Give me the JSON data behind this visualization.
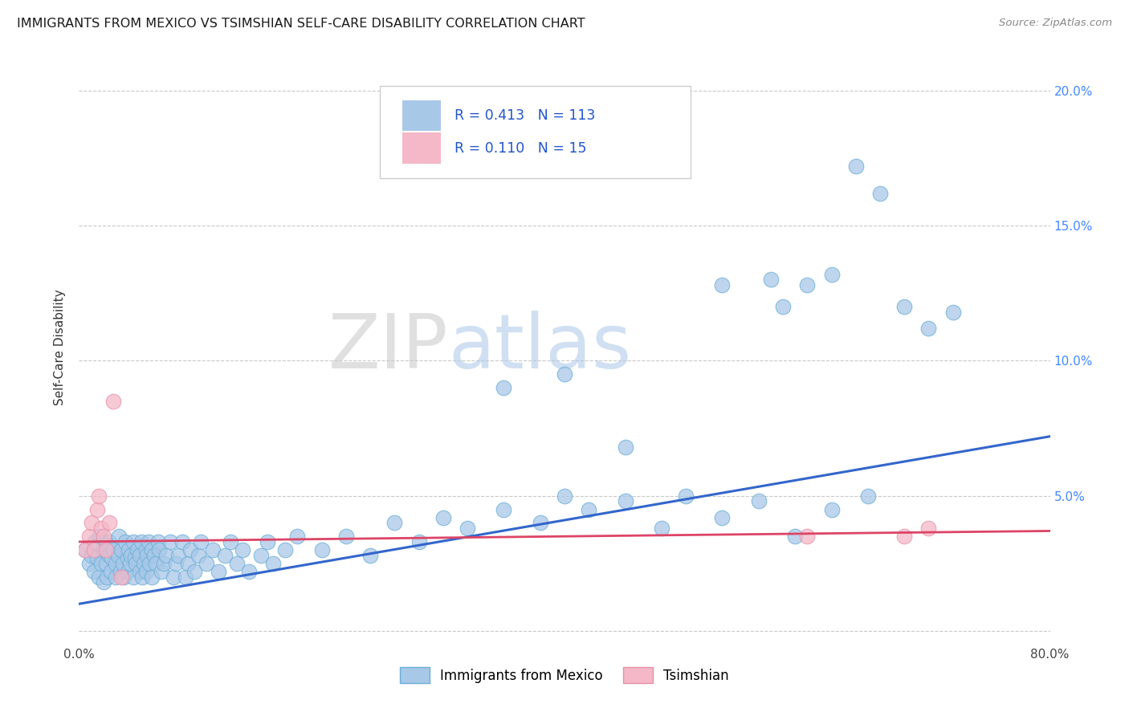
{
  "title": "IMMIGRANTS FROM MEXICO VS TSIMSHIAN SELF-CARE DISABILITY CORRELATION CHART",
  "source": "Source: ZipAtlas.com",
  "ylabel": "Self-Care Disability",
  "xlim": [
    0.0,
    0.8
  ],
  "ylim": [
    -0.005,
    0.215
  ],
  "legend_series1_label": "Immigrants from Mexico",
  "legend_series2_label": "Tsimshian",
  "R1": "0.413",
  "N1": "113",
  "R2": "0.110",
  "N2": "15",
  "color_blue": "#a8c8e8",
  "color_blue_edge": "#6aaed6",
  "color_pink": "#f4b8c8",
  "color_pink_edge": "#e890a8",
  "color_line_blue": "#3366cc",
  "color_line_pink": "#dd4466",
  "watermark_zip": "ZIP",
  "watermark_atlas": "atlas",
  "blue_x": [
    0.005,
    0.008,
    0.01,
    0.012,
    0.013,
    0.015,
    0.016,
    0.017,
    0.018,
    0.02,
    0.02,
    0.022,
    0.022,
    0.023,
    0.025,
    0.025,
    0.026,
    0.027,
    0.028,
    0.03,
    0.03,
    0.032,
    0.033,
    0.034,
    0.035,
    0.036,
    0.037,
    0.038,
    0.04,
    0.04,
    0.041,
    0.042,
    0.043,
    0.045,
    0.045,
    0.046,
    0.047,
    0.048,
    0.05,
    0.05,
    0.051,
    0.052,
    0.053,
    0.055,
    0.055,
    0.056,
    0.057,
    0.058,
    0.06,
    0.06,
    0.062,
    0.063,
    0.065,
    0.066,
    0.068,
    0.07,
    0.072,
    0.075,
    0.078,
    0.08,
    0.082,
    0.085,
    0.088,
    0.09,
    0.092,
    0.095,
    0.098,
    0.1,
    0.105,
    0.11,
    0.115,
    0.12,
    0.125,
    0.13,
    0.135,
    0.14,
    0.15,
    0.155,
    0.16,
    0.17,
    0.18,
    0.2,
    0.22,
    0.24,
    0.26,
    0.28,
    0.3,
    0.32,
    0.35,
    0.38,
    0.4,
    0.42,
    0.45,
    0.48,
    0.5,
    0.53,
    0.56,
    0.59,
    0.62,
    0.65,
    0.35,
    0.4,
    0.45,
    0.53,
    0.57,
    0.58,
    0.6,
    0.62,
    0.64,
    0.66,
    0.68,
    0.7,
    0.72
  ],
  "blue_y": [
    0.03,
    0.025,
    0.028,
    0.022,
    0.033,
    0.027,
    0.02,
    0.035,
    0.025,
    0.03,
    0.018,
    0.025,
    0.032,
    0.02,
    0.028,
    0.033,
    0.022,
    0.027,
    0.03,
    0.025,
    0.02,
    0.028,
    0.035,
    0.022,
    0.03,
    0.025,
    0.02,
    0.033,
    0.027,
    0.022,
    0.03,
    0.025,
    0.028,
    0.02,
    0.033,
    0.027,
    0.025,
    0.03,
    0.022,
    0.028,
    0.033,
    0.02,
    0.025,
    0.03,
    0.022,
    0.028,
    0.033,
    0.025,
    0.03,
    0.02,
    0.028,
    0.025,
    0.033,
    0.03,
    0.022,
    0.025,
    0.028,
    0.033,
    0.02,
    0.025,
    0.028,
    0.033,
    0.02,
    0.025,
    0.03,
    0.022,
    0.028,
    0.033,
    0.025,
    0.03,
    0.022,
    0.028,
    0.033,
    0.025,
    0.03,
    0.022,
    0.028,
    0.033,
    0.025,
    0.03,
    0.035,
    0.03,
    0.035,
    0.028,
    0.04,
    0.033,
    0.042,
    0.038,
    0.045,
    0.04,
    0.05,
    0.045,
    0.048,
    0.038,
    0.05,
    0.042,
    0.048,
    0.035,
    0.045,
    0.05,
    0.09,
    0.095,
    0.068,
    0.128,
    0.13,
    0.12,
    0.128,
    0.132,
    0.172,
    0.162,
    0.12,
    0.112,
    0.118
  ],
  "pink_x": [
    0.005,
    0.008,
    0.01,
    0.012,
    0.015,
    0.016,
    0.018,
    0.02,
    0.022,
    0.025,
    0.028,
    0.035,
    0.6,
    0.68,
    0.7
  ],
  "pink_y": [
    0.03,
    0.035,
    0.04,
    0.03,
    0.045,
    0.05,
    0.038,
    0.035,
    0.03,
    0.04,
    0.085,
    0.02,
    0.035,
    0.035,
    0.038
  ]
}
